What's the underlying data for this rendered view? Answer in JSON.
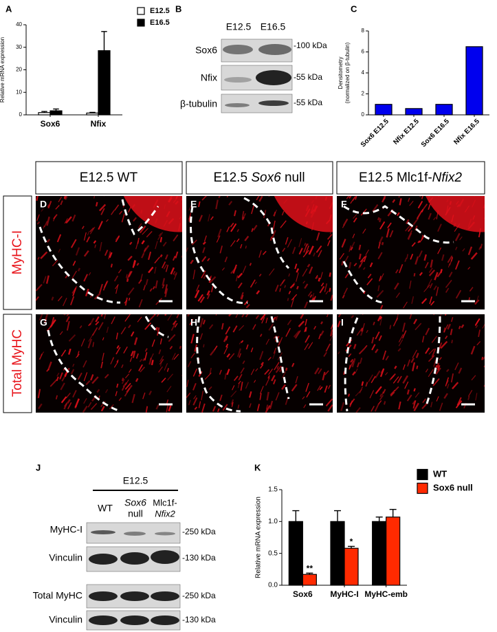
{
  "chart_data": [
    {
      "type": "bar",
      "panel": "A",
      "ylabel": "Relative mRNA expression",
      "categories": [
        "Sox6",
        "Nfix"
      ],
      "series": [
        {
          "name": "E12.5",
          "color": "#ffffff",
          "values": [
            1,
            0.8
          ],
          "errors": [
            0.5,
            0.3
          ]
        },
        {
          "name": "E16.5",
          "color": "#000000",
          "values": [
            1.8,
            28.5
          ],
          "errors": [
            0.8,
            8.5
          ]
        }
      ],
      "ylim": [
        0,
        40
      ],
      "yticks": [
        0,
        10,
        20,
        30,
        40
      ]
    },
    {
      "type": "bar",
      "panel": "C",
      "ylabel": [
        "Densitometry",
        "(normalized on β-tubulin)"
      ],
      "categories": [
        "Sox6 E12.5",
        "Nfix E12.5",
        "Sox6 E16.5",
        "Nfix E16.5"
      ],
      "values": [
        1,
        0.6,
        1,
        6.5
      ],
      "color": "#0000ee",
      "ylim": [
        0,
        8
      ],
      "yticks": [
        0,
        2,
        4,
        6,
        8
      ]
    },
    {
      "type": "bar",
      "panel": "K",
      "ylabel": "Relative mRNA expression",
      "categories": [
        "Sox6",
        "MyHC-I",
        "MyHC-emb"
      ],
      "series": [
        {
          "name": "WT",
          "color": "#000000",
          "values": [
            1,
            1,
            1
          ],
          "errors": [
            0.17,
            0.17,
            0.07
          ]
        },
        {
          "name": "Sox6 null",
          "color": "#ff2a00",
          "values": [
            0.17,
            0.58,
            1.07
          ],
          "errors": [
            0.02,
            0.03,
            0.12
          ],
          "significance": [
            "**",
            "*",
            null
          ]
        }
      ],
      "ylim": [
        0,
        1.5
      ],
      "yticks": [
        {
          "value": 0,
          "label": "0.0"
        },
        0.5,
        {
          "value": 1,
          "label": "1.0"
        },
        1.5
      ]
    }
  ],
  "figure": {
    "blot_b": {
      "letter": "B",
      "lanes": [
        "E12.5",
        "E16.5"
      ],
      "rows": [
        {
          "label": "Sox6",
          "size": "-100 kDa"
        },
        {
          "label": "Nfix",
          "size": "-55 kDa"
        },
        {
          "label": "β-tubulin",
          "size": "-55 kDa"
        }
      ]
    },
    "micro": {
      "columns": [
        [
          "E12.5 WT"
        ],
        [
          "E12.5",
          "Sox6",
          "null"
        ],
        [
          "E12.5 Mlc1f-",
          "Nfix2"
        ]
      ],
      "rows": [
        "MyHC-I",
        "Total MyHC"
      ],
      "letters": [
        "D",
        "E",
        "F",
        "G",
        "H",
        "I"
      ]
    },
    "blot_j": {
      "letter": "J",
      "group": "E12.5",
      "lanes": [
        [
          "WT"
        ],
        [
          "Sox6",
          "null"
        ],
        [
          "Mlc1f-",
          "Nfix2"
        ]
      ],
      "rows": [
        {
          "label": "MyHC-I",
          "size": "-250 kDa"
        },
        {
          "label": "Vinculin",
          "size": "-130 kDa"
        },
        {
          "label": "Total MyHC",
          "size": "-250 kDa"
        },
        {
          "label": "Vinculin",
          "size": "-130 kDa"
        }
      ]
    }
  }
}
